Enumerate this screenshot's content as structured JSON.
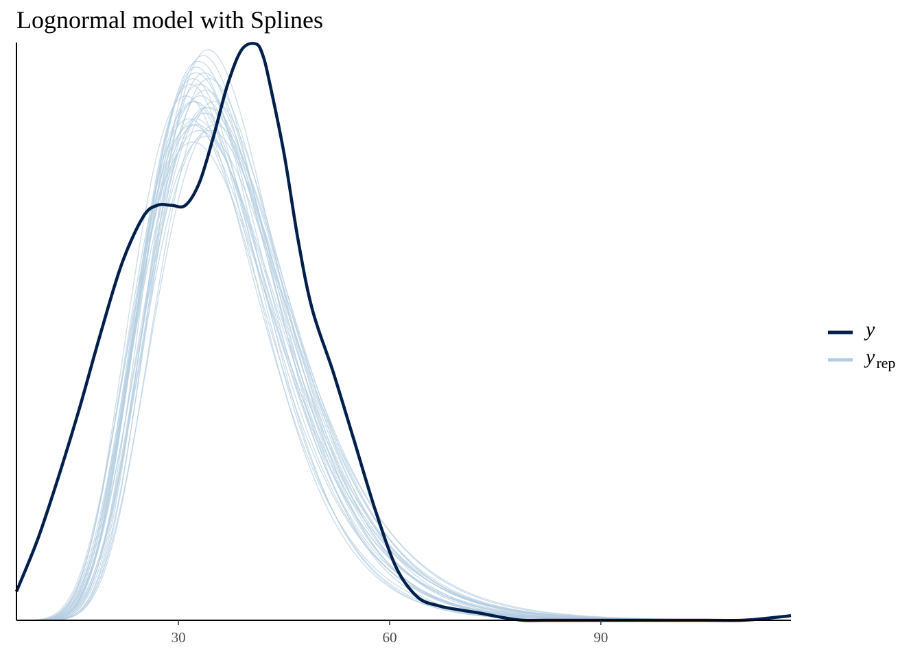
{
  "chart_data": {
    "type": "line",
    "title": "Lognormal model with Splines",
    "xlabel": "",
    "ylabel": "",
    "xlim": [
      7,
      117
    ],
    "ylim": [
      0,
      1
    ],
    "x_ticks": [
      30,
      60,
      90
    ],
    "x_tick_labels": [
      "30",
      "60",
      "90"
    ],
    "y_ticks_shown": false,
    "grid": false,
    "legend_position": "right",
    "colors": {
      "y": "#011f4b",
      "yrep": "#b3cde0"
    },
    "legend": [
      {
        "key": "y",
        "label": "y",
        "subscript": ""
      },
      {
        "key": "yrep",
        "label": "y",
        "subscript": "rep"
      }
    ],
    "series": [
      {
        "key": "y",
        "name": "y",
        "x": [
          7,
          10,
          13,
          16,
          19,
          22,
          25,
          27,
          29,
          31,
          33,
          35,
          37,
          39,
          41,
          42,
          43,
          45,
          47,
          49,
          52,
          55,
          58,
          61,
          64,
          67,
          70,
          73,
          76,
          79,
          82,
          85,
          88,
          91,
          95,
          100,
          105,
          110,
          114,
          117
        ],
        "y": [
          0.05,
          0.14,
          0.25,
          0.37,
          0.5,
          0.62,
          0.7,
          0.72,
          0.72,
          0.72,
          0.76,
          0.84,
          0.93,
          0.99,
          1.0,
          0.98,
          0.93,
          0.81,
          0.66,
          0.54,
          0.43,
          0.31,
          0.19,
          0.09,
          0.04,
          0.025,
          0.018,
          0.012,
          0.005,
          0.0,
          0.0,
          0.0,
          0.0,
          0.0,
          0.0,
          0.0,
          0.0,
          0.0,
          0.004,
          0.008
        ]
      }
    ],
    "yrep_series": [
      {
        "mu": 3.53,
        "sigma": 0.27,
        "peak": 0.93
      },
      {
        "mu": 3.55,
        "sigma": 0.29,
        "peak": 0.9
      },
      {
        "mu": 3.57,
        "sigma": 0.28,
        "peak": 0.97
      },
      {
        "mu": 3.59,
        "sigma": 0.3,
        "peak": 0.91
      },
      {
        "mu": 3.61,
        "sigma": 0.27,
        "peak": 0.94
      },
      {
        "mu": 3.56,
        "sigma": 0.31,
        "peak": 0.86
      },
      {
        "mu": 3.58,
        "sigma": 0.26,
        "peak": 0.98
      },
      {
        "mu": 3.62,
        "sigma": 0.29,
        "peak": 0.89
      },
      {
        "mu": 3.54,
        "sigma": 0.3,
        "peak": 0.87
      },
      {
        "mu": 3.6,
        "sigma": 0.28,
        "peak": 0.92
      },
      {
        "mu": 3.57,
        "sigma": 0.32,
        "peak": 0.83
      },
      {
        "mu": 3.63,
        "sigma": 0.27,
        "peak": 0.9
      },
      {
        "mu": 3.55,
        "sigma": 0.26,
        "peak": 0.96
      },
      {
        "mu": 3.59,
        "sigma": 0.31,
        "peak": 0.85
      },
      {
        "mu": 3.61,
        "sigma": 0.3,
        "peak": 0.88
      },
      {
        "mu": 3.56,
        "sigma": 0.28,
        "peak": 0.95
      },
      {
        "mu": 3.64,
        "sigma": 0.28,
        "peak": 0.86
      },
      {
        "mu": 3.52,
        "sigma": 0.29,
        "peak": 0.91
      },
      {
        "mu": 3.58,
        "sigma": 0.29,
        "peak": 0.93
      },
      {
        "mu": 3.6,
        "sigma": 0.26,
        "peak": 0.99
      },
      {
        "mu": 3.57,
        "sigma": 0.3,
        "peak": 0.87
      },
      {
        "mu": 3.62,
        "sigma": 0.31,
        "peak": 0.84
      },
      {
        "mu": 3.54,
        "sigma": 0.27,
        "peak": 0.94
      },
      {
        "mu": 3.59,
        "sigma": 0.27,
        "peak": 0.95
      },
      {
        "mu": 3.61,
        "sigma": 0.29,
        "peak": 0.89
      },
      {
        "mu": 3.56,
        "sigma": 0.29,
        "peak": 0.9
      },
      {
        "mu": 3.63,
        "sigma": 0.3,
        "peak": 0.85
      },
      {
        "mu": 3.58,
        "sigma": 0.31,
        "peak": 0.86
      }
    ]
  }
}
